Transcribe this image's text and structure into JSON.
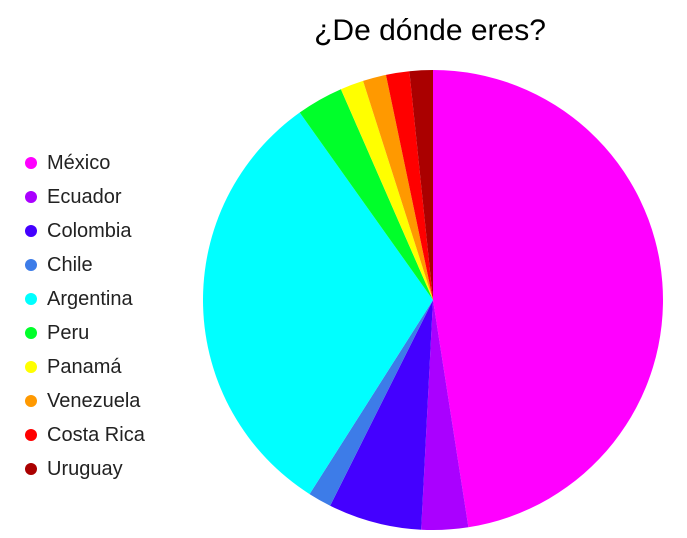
{
  "chart_data": {
    "type": "pie",
    "title": "¿De dónde eres?",
    "legend_position": "left",
    "categories": [
      "México",
      "Ecuador",
      "Colombia",
      "Chile",
      "Argentina",
      "Peru",
      "Panamá",
      "Venezuela",
      "Costa Rica",
      "Uruguay"
    ],
    "values": [
      29,
      2,
      4,
      1,
      19,
      2,
      1,
      1,
      1,
      1
    ],
    "colors": [
      "#ff00ff",
      "#aa00ff",
      "#4400ff",
      "#3d7ce8",
      "#00ffff",
      "#00ff2a",
      "#ffff00",
      "#ff9900",
      "#ff0000",
      "#aa0000"
    ]
  }
}
